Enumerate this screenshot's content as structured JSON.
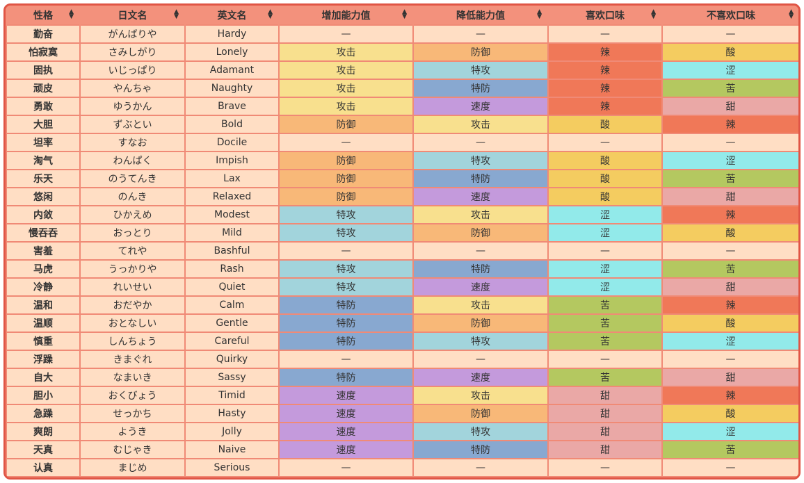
{
  "headers": [
    "性格",
    "日文名",
    "英文名",
    "增加能力值",
    "降低能力值",
    "喜欢口味",
    "不喜欢口味"
  ],
  "colors": {
    "攻击": "#f8e08e",
    "防御": "#f8b878",
    "特攻": "#a2d4dc",
    "特防": "#88a8d0",
    "速度": "#c49adc",
    "辣": "#f07858",
    "酸": "#f4cc60",
    "涩": "#92eaea",
    "苦": "#b4c860",
    "甜": "#eaa8a6",
    "—": "#ffdec4"
  },
  "rows": [
    [
      "勤奋",
      "がんばりや",
      "Hardy",
      "—",
      "—",
      "—",
      "—"
    ],
    [
      "怕寂寞",
      "さみしがり",
      "Lonely",
      "攻击",
      "防御",
      "辣",
      "酸"
    ],
    [
      "固执",
      "いじっぱり",
      "Adamant",
      "攻击",
      "特攻",
      "辣",
      "涩"
    ],
    [
      "顽皮",
      "やんちゃ",
      "Naughty",
      "攻击",
      "特防",
      "辣",
      "苦"
    ],
    [
      "勇敢",
      "ゆうかん",
      "Brave",
      "攻击",
      "速度",
      "辣",
      "甜"
    ],
    [
      "大胆",
      "ずぶとい",
      "Bold",
      "防御",
      "攻击",
      "酸",
      "辣"
    ],
    [
      "坦率",
      "すなお",
      "Docile",
      "—",
      "—",
      "—",
      "—"
    ],
    [
      "淘气",
      "わんぱく",
      "Impish",
      "防御",
      "特攻",
      "酸",
      "涩"
    ],
    [
      "乐天",
      "のうてんき",
      "Lax",
      "防御",
      "特防",
      "酸",
      "苦"
    ],
    [
      "悠闲",
      "のんき",
      "Relaxed",
      "防御",
      "速度",
      "酸",
      "甜"
    ],
    [
      "内敛",
      "ひかえめ",
      "Modest",
      "特攻",
      "攻击",
      "涩",
      "辣"
    ],
    [
      "慢吞吞",
      "おっとり",
      "Mild",
      "特攻",
      "防御",
      "涩",
      "酸"
    ],
    [
      "害羞",
      "てれや",
      "Bashful",
      "—",
      "—",
      "—",
      "—"
    ],
    [
      "马虎",
      "うっかりや",
      "Rash",
      "特攻",
      "特防",
      "涩",
      "苦"
    ],
    [
      "冷静",
      "れいせい",
      "Quiet",
      "特攻",
      "速度",
      "涩",
      "甜"
    ],
    [
      "温和",
      "おだやか",
      "Calm",
      "特防",
      "攻击",
      "苦",
      "辣"
    ],
    [
      "温顺",
      "おとなしい",
      "Gentle",
      "特防",
      "防御",
      "苦",
      "酸"
    ],
    [
      "慎重",
      "しんちょう",
      "Careful",
      "特防",
      "特攻",
      "苦",
      "涩"
    ],
    [
      "浮躁",
      "きまぐれ",
      "Quirky",
      "—",
      "—",
      "—",
      "—"
    ],
    [
      "自大",
      "なまいき",
      "Sassy",
      "特防",
      "速度",
      "苦",
      "甜"
    ],
    [
      "胆小",
      "おくびょう",
      "Timid",
      "速度",
      "攻击",
      "甜",
      "辣"
    ],
    [
      "急躁",
      "せっかち",
      "Hasty",
      "速度",
      "防御",
      "甜",
      "酸"
    ],
    [
      "爽朗",
      "ようき",
      "Jolly",
      "速度",
      "特攻",
      "甜",
      "涩"
    ],
    [
      "天真",
      "むじゃき",
      "Naive",
      "速度",
      "特防",
      "甜",
      "苦"
    ],
    [
      "认真",
      "まじめ",
      "Serious",
      "—",
      "—",
      "—",
      "—"
    ]
  ]
}
